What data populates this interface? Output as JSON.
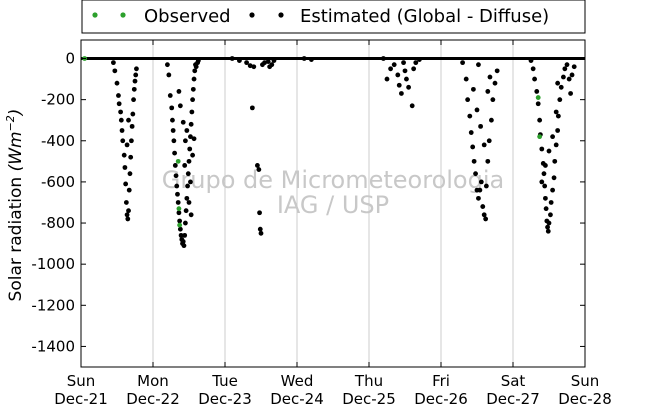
{
  "chart_data": {
    "type": "scatter",
    "ylabel": "Solar radiation (W m⁻²)",
    "ylabel_parts": {
      "text": "Solar radiation ",
      "math": "(Wm",
      "exp": "−2",
      "close": ")"
    },
    "ylim": [
      -1500,
      90
    ],
    "yticks": [
      0,
      -200,
      -400,
      -600,
      -800,
      -1000,
      -1200,
      -1400
    ],
    "xlim": [
      0,
      7
    ],
    "xtick_values": [
      0,
      1,
      2,
      3,
      4,
      5,
      6,
      7
    ],
    "xtick_days": [
      "Sun",
      "Mon",
      "Tue",
      "Wed",
      "Thu",
      "Fri",
      "Sat",
      "Sun"
    ],
    "xtick_dates": [
      "Dec-21",
      "Dec-22",
      "Dec-23",
      "Dec-24",
      "Dec-25",
      "Dec-26",
      "Dec-27",
      "Dec-28"
    ],
    "grid": "vertical",
    "legend_position": "top-center",
    "watermark": [
      "Grupo de Micrometeorologia",
      "IAG / USP"
    ],
    "series": [
      {
        "name": "Observed",
        "color": "#2ca02c",
        "points": [
          [
            0.05,
            0
          ],
          [
            1.35,
            -500
          ],
          [
            1.36,
            -730
          ],
          [
            1.37,
            -810
          ],
          [
            6.35,
            -190
          ],
          [
            6.37,
            -380
          ]
        ]
      },
      {
        "name": "Estimated (Global - Diffuse)",
        "color": "#000000",
        "points": [
          [
            0.45,
            -20
          ],
          [
            0.47,
            -60
          ],
          [
            0.5,
            -120
          ],
          [
            0.52,
            -180
          ],
          [
            0.53,
            -220
          ],
          [
            0.55,
            -260
          ],
          [
            0.56,
            -300
          ],
          [
            0.57,
            -350
          ],
          [
            0.58,
            -400
          ],
          [
            0.6,
            -470
          ],
          [
            0.61,
            -530
          ],
          [
            0.62,
            -610
          ],
          [
            0.63,
            -700
          ],
          [
            0.64,
            -760
          ],
          [
            0.65,
            -780
          ],
          [
            0.66,
            -740
          ],
          [
            0.67,
            -640
          ],
          [
            0.68,
            -560
          ],
          [
            0.69,
            -480
          ],
          [
            0.7,
            -400
          ],
          [
            0.71,
            -330
          ],
          [
            0.72,
            -270
          ],
          [
            0.73,
            -200
          ],
          [
            0.74,
            -150
          ],
          [
            0.75,
            -110
          ],
          [
            0.76,
            -80
          ],
          [
            0.77,
            -50
          ],
          [
            0.66,
            -300
          ],
          [
            0.64,
            -420
          ],
          [
            1.2,
            -30
          ],
          [
            1.22,
            -80
          ],
          [
            1.24,
            -180
          ],
          [
            1.26,
            -240
          ],
          [
            1.27,
            -300
          ],
          [
            1.28,
            -350
          ],
          [
            1.29,
            -400
          ],
          [
            1.3,
            -460
          ],
          [
            1.31,
            -520
          ],
          [
            1.32,
            -570
          ],
          [
            1.33,
            -620
          ],
          [
            1.34,
            -660
          ],
          [
            1.35,
            -700
          ],
          [
            1.36,
            -750
          ],
          [
            1.37,
            -790
          ],
          [
            1.38,
            -830
          ],
          [
            1.39,
            -860
          ],
          [
            1.4,
            -880
          ],
          [
            1.41,
            -900
          ],
          [
            1.42,
            -890
          ],
          [
            1.43,
            -910
          ],
          [
            1.44,
            -860
          ],
          [
            1.45,
            -800
          ],
          [
            1.46,
            -740
          ],
          [
            1.47,
            -680
          ],
          [
            1.48,
            -620
          ],
          [
            1.49,
            -560
          ],
          [
            1.5,
            -500
          ],
          [
            1.51,
            -440
          ],
          [
            1.52,
            -380
          ],
          [
            1.53,
            -320
          ],
          [
            1.54,
            -260
          ],
          [
            1.55,
            -200
          ],
          [
            1.56,
            -150
          ],
          [
            1.57,
            -100
          ],
          [
            1.58,
            -60
          ],
          [
            1.59,
            -30
          ],
          [
            1.45,
            -400
          ],
          [
            1.47,
            -350
          ],
          [
            1.5,
            -700
          ],
          [
            1.52,
            -600
          ],
          [
            1.53,
            -760
          ],
          [
            1.55,
            -470
          ],
          [
            1.57,
            -390
          ],
          [
            1.6,
            -40
          ],
          [
            1.62,
            -20
          ],
          [
            1.63,
            -10
          ],
          [
            1.42,
            -310
          ],
          [
            1.44,
            -520
          ],
          [
            1.38,
            -230
          ],
          [
            1.36,
            -160
          ],
          [
            2.1,
            0
          ],
          [
            2.2,
            -10
          ],
          [
            2.3,
            -20
          ],
          [
            2.35,
            -35
          ],
          [
            2.4,
            -40
          ],
          [
            2.38,
            -240
          ],
          [
            2.45,
            -520
          ],
          [
            2.47,
            -540
          ],
          [
            2.48,
            -750
          ],
          [
            2.49,
            -830
          ],
          [
            2.5,
            -850
          ],
          [
            2.52,
            -30
          ],
          [
            2.55,
            -20
          ],
          [
            2.6,
            -15
          ],
          [
            2.62,
            -40
          ],
          [
            2.65,
            -30
          ],
          [
            2.68,
            -10
          ],
          [
            3.1,
            0
          ],
          [
            3.2,
            -5
          ],
          [
            4.2,
            0
          ],
          [
            4.25,
            -100
          ],
          [
            4.3,
            -50
          ],
          [
            4.35,
            -30
          ],
          [
            4.4,
            -80
          ],
          [
            4.42,
            -130
          ],
          [
            4.45,
            -170
          ],
          [
            4.48,
            -20
          ],
          [
            4.5,
            -60
          ],
          [
            4.52,
            -100
          ],
          [
            4.55,
            -140
          ],
          [
            4.6,
            -230
          ],
          [
            4.62,
            -50
          ],
          [
            4.65,
            -20
          ],
          [
            4.7,
            -5
          ],
          [
            5.3,
            -20
          ],
          [
            5.35,
            -100
          ],
          [
            5.37,
            -200
          ],
          [
            5.4,
            -280
          ],
          [
            5.42,
            -360
          ],
          [
            5.44,
            -430
          ],
          [
            5.46,
            -500
          ],
          [
            5.48,
            -560
          ],
          [
            5.5,
            -640
          ],
          [
            5.52,
            -680
          ],
          [
            5.54,
            -640
          ],
          [
            5.56,
            -600
          ],
          [
            5.58,
            -720
          ],
          [
            5.6,
            -760
          ],
          [
            5.62,
            -780
          ],
          [
            5.63,
            -620
          ],
          [
            5.65,
            -500
          ],
          [
            5.67,
            -400
          ],
          [
            5.7,
            -300
          ],
          [
            5.72,
            -200
          ],
          [
            5.75,
            -120
          ],
          [
            5.78,
            -60
          ],
          [
            5.45,
            -150
          ],
          [
            5.5,
            -250
          ],
          [
            5.55,
            -330
          ],
          [
            5.6,
            -420
          ],
          [
            5.65,
            -160
          ],
          [
            5.68,
            -90
          ],
          [
            5.52,
            -30
          ],
          [
            6.25,
            -10
          ],
          [
            6.28,
            -50
          ],
          [
            6.3,
            -100
          ],
          [
            6.33,
            -160
          ],
          [
            6.35,
            -220
          ],
          [
            6.37,
            -300
          ],
          [
            6.38,
            -370
          ],
          [
            6.4,
            -440
          ],
          [
            6.42,
            -510
          ],
          [
            6.43,
            -560
          ],
          [
            6.44,
            -620
          ],
          [
            6.45,
            -680
          ],
          [
            6.46,
            -730
          ],
          [
            6.47,
            -790
          ],
          [
            6.48,
            -820
          ],
          [
            6.49,
            -840
          ],
          [
            6.5,
            -800
          ],
          [
            6.52,
            -760
          ],
          [
            6.53,
            -700
          ],
          [
            6.55,
            -640
          ],
          [
            6.57,
            -580
          ],
          [
            6.58,
            -500
          ],
          [
            6.6,
            -420
          ],
          [
            6.62,
            -350
          ],
          [
            6.63,
            -280
          ],
          [
            6.65,
            -200
          ],
          [
            6.67,
            -140
          ],
          [
            6.7,
            -90
          ],
          [
            6.72,
            -50
          ],
          [
            6.75,
            -30
          ],
          [
            6.78,
            -100
          ],
          [
            6.8,
            -170
          ],
          [
            6.82,
            -80
          ],
          [
            6.85,
            -40
          ],
          [
            6.4,
            -600
          ],
          [
            6.45,
            -520
          ],
          [
            6.5,
            -450
          ],
          [
            6.55,
            -380
          ],
          [
            6.6,
            -260
          ],
          [
            6.62,
            -120
          ]
        ]
      }
    ]
  }
}
